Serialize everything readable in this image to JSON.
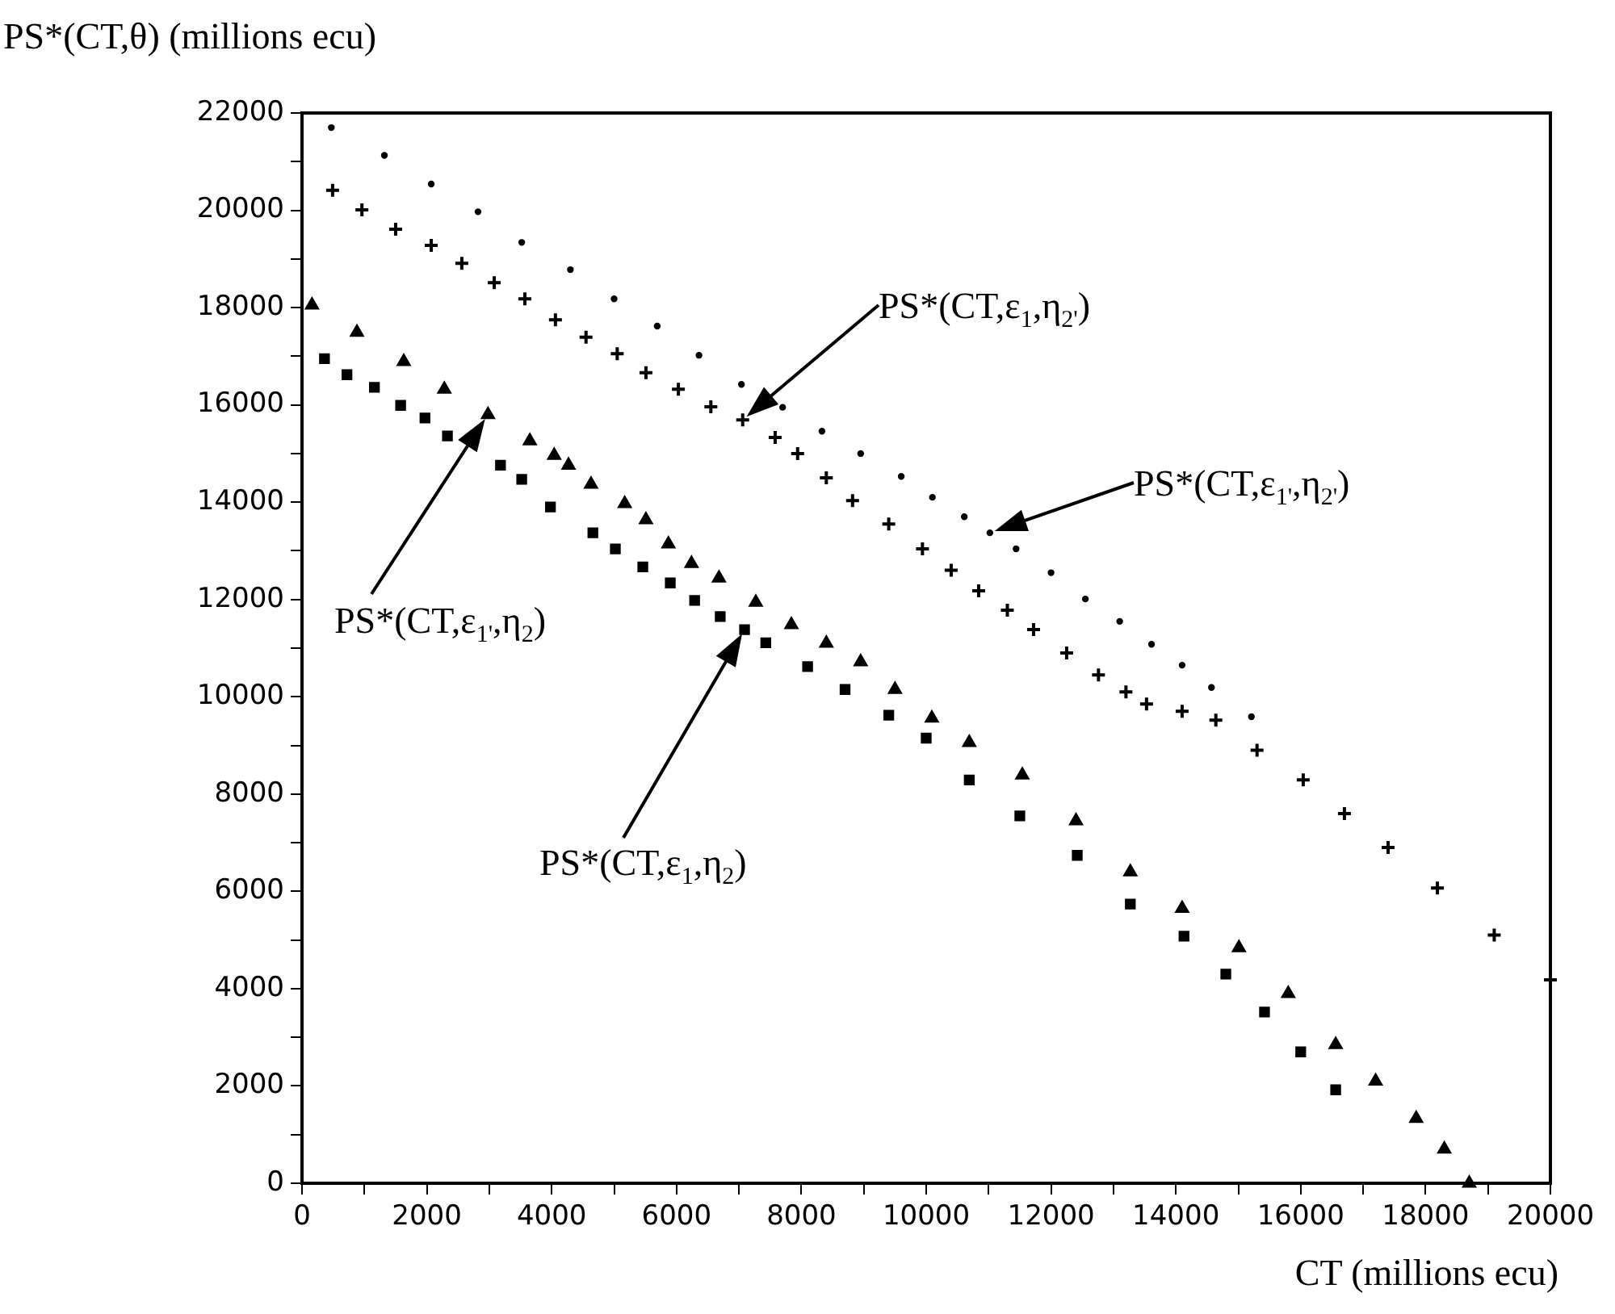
{
  "chart_data": {
    "type": "scatter",
    "ylabel": "PS*(CT,θ) (millions ecu)",
    "xlabel": "CT (millions ecu)",
    "xlim": [
      0,
      20000
    ],
    "ylim": [
      0,
      22000
    ],
    "xticks": [
      0,
      {
        "value": 1000,
        "label": null
      },
      2000,
      {
        "value": 3000,
        "label": null
      },
      4000,
      {
        "value": 5000,
        "label": null
      },
      6000,
      {
        "value": 7000,
        "label": null
      },
      8000,
      {
        "value": 9000,
        "label": null
      },
      10000,
      {
        "value": 11000,
        "label": null
      },
      12000,
      {
        "value": 13000,
        "label": null
      },
      14000,
      {
        "value": 15000,
        "label": null
      },
      16000,
      {
        "value": 17000,
        "label": null
      },
      18000,
      {
        "value": 19000,
        "label": null
      },
      20000
    ],
    "yticks": [
      0,
      {
        "value": 1000,
        "label": null
      },
      2000,
      {
        "value": 3000,
        "label": null
      },
      4000,
      {
        "value": 5000,
        "label": null
      },
      6000,
      {
        "value": 7000,
        "label": null
      },
      8000,
      {
        "value": 9000,
        "label": null
      },
      10000,
      {
        "value": 11000,
        "label": null
      },
      12000,
      {
        "value": 13000,
        "label": null
      },
      14000,
      {
        "value": 15000,
        "label": null
      },
      16000,
      {
        "value": 17000,
        "label": null
      },
      18000,
      {
        "value": 19000,
        "label": null
      },
      20000,
      {
        "value": 21000,
        "label": null
      },
      22000
    ],
    "series": [
      {
        "color": "#000000",
        "marker": "circle",
        "x": [
          470,
          1320,
          2070,
          2820,
          3520,
          4300,
          5000,
          5690,
          6360,
          7040,
          7700,
          8330,
          8950,
          9600,
          10100,
          10610,
          11020,
          11440,
          12000,
          12550,
          13100,
          13610,
          14100,
          14570,
          15210
        ],
        "values": [
          21700,
          21130,
          20540,
          19970,
          19340,
          18780,
          18180,
          17620,
          17020,
          16420,
          15950,
          15460,
          15000,
          14530,
          14100,
          13700,
          13370,
          13040,
          12550,
          12010,
          11550,
          11080,
          10650,
          10190,
          9590
        ]
      },
      {
        "color": "#000000",
        "marker": "cross",
        "x": [
          490,
          960,
          1500,
          2070,
          2560,
          3080,
          3570,
          4060,
          4550,
          5050,
          5510,
          6030,
          6550,
          7060,
          7580,
          7940,
          8400,
          8820,
          9400,
          9940,
          10400,
          10840,
          11300,
          11720,
          12250,
          12760,
          13200,
          13530,
          14100,
          14640,
          15300,
          16040,
          16700,
          17400,
          18190,
          19100,
          20000
        ],
        "values": [
          20410,
          20010,
          19610,
          19280,
          18910,
          18510,
          18180,
          17750,
          17390,
          17050,
          16660,
          16320,
          15960,
          15690,
          15330,
          15000,
          14500,
          14030,
          13550,
          13040,
          12600,
          12180,
          11780,
          11380,
          10900,
          10450,
          10100,
          9850,
          9700,
          9520,
          8900,
          8290,
          7600,
          6900,
          6070,
          5100,
          4180
        ]
      },
      {
        "color": "#000000",
        "marker": "triangle",
        "x": [
          160,
          880,
          1630,
          2280,
          2980,
          3650,
          4040,
          4270,
          4630,
          5170,
          5510,
          5870,
          6240,
          6680,
          7270,
          7840,
          8400,
          8950,
          9500,
          10090,
          10690,
          11540,
          12400,
          13270,
          14100,
          15010,
          15800,
          16560,
          17200,
          17850,
          18300,
          18700
        ],
        "values": [
          18050,
          17490,
          16890,
          16320,
          15800,
          15260,
          14960,
          14760,
          14370,
          13970,
          13640,
          13140,
          12740,
          12440,
          11940,
          11480,
          11100,
          10720,
          10150,
          9560,
          9060,
          8390,
          7450,
          6400,
          5650,
          4840,
          3900,
          2850,
          2100,
          1330,
          700,
          0
        ]
      },
      {
        "color": "#000000",
        "marker": "square",
        "x": [
          360,
          720,
          1160,
          1580,
          1970,
          2330,
          3180,
          3520,
          3980,
          4660,
          5020,
          5460,
          5900,
          6290,
          6700,
          7090,
          7430,
          8100,
          8700,
          9400,
          10000,
          10690,
          11500,
          12420,
          13270,
          14130,
          14800,
          15420,
          16000,
          16560
        ],
        "values": [
          16950,
          16620,
          16360,
          15990,
          15730,
          15360,
          14760,
          14470,
          13900,
          13370,
          13040,
          12670,
          12340,
          11980,
          11650,
          11380,
          11110,
          10620,
          10150,
          9620,
          9150,
          8290,
          7550,
          6740,
          5740,
          5080,
          4300,
          3520,
          2700,
          1920
        ]
      }
    ],
    "annotations": [
      "PS*(CT,ε$_{1}$,η$_{2'}$)",
      "PS*(CT,ε$_{1'}$,η$_{2'}$)",
      "PS*(CT,ε$_{1'}$,η$_{2}$)",
      "PS*(CT,ε$_{1}$,η$_{2}$)"
    ]
  }
}
